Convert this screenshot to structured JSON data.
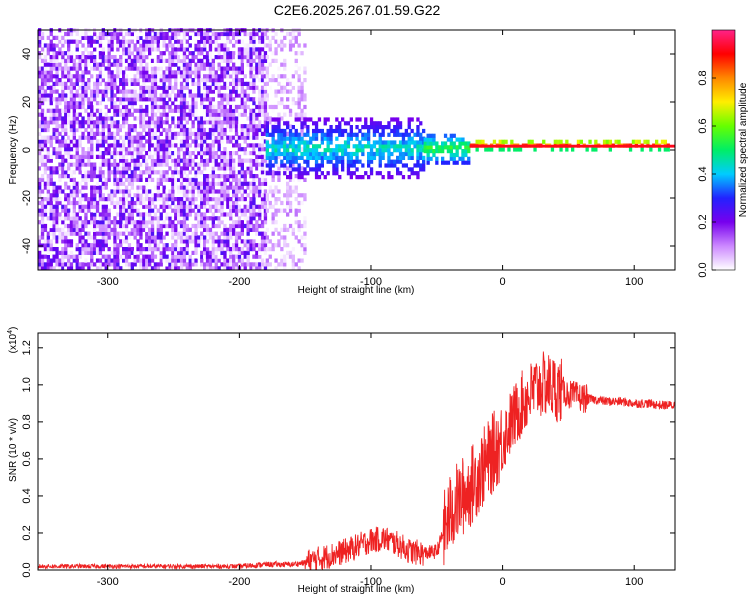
{
  "figure_title": "C2E6.2025.267.01.59.G22",
  "chart_data": [
    {
      "type": "heatmap",
      "title": "C2E6.2025.267.01.59.G22",
      "xlabel": "Height of straight line (km)",
      "ylabel": "Frequency (Hz)",
      "xlim": [
        -353,
        131
      ],
      "ylim": [
        -50,
        50
      ],
      "xticks": [
        -300,
        -200,
        -100,
        0,
        100
      ],
      "xtick_labels": [
        "-300",
        "-200",
        "-100",
        "0",
        "100"
      ],
      "yticks": [
        -40,
        -20,
        0,
        20,
        40
      ],
      "ytick_labels": [
        "-40",
        "-20",
        "0",
        "20",
        "40"
      ],
      "colorbar": {
        "label": "Normalized spectral amplitude",
        "range": [
          0,
          1
        ],
        "ticks": [
          0.0,
          0.2,
          0.4,
          0.6,
          0.8
        ],
        "tick_labels": [
          "0.0",
          "0.2",
          "0.4",
          "0.6",
          "0.8"
        ],
        "colormap": [
          "#ffffff",
          "#cc88ff",
          "#7700ee",
          "#2222ff",
          "#00ccff",
          "#00ee66",
          "#66ff00",
          "#ffee00",
          "#ff8800",
          "#ff0000",
          "#ff2288"
        ]
      },
      "regions": [
        {
          "x": [
            -353,
            -180
          ],
          "freq_spread": 50,
          "amplitude": [
            0.0,
            0.25
          ],
          "description": "broadband noise"
        },
        {
          "x": [
            -180,
            -150
          ],
          "freq_spread": 50,
          "amplitude": [
            0.0,
            0.12
          ],
          "description": "faint noise edge"
        },
        {
          "x": [
            -180,
            -60
          ],
          "freq_center": 0,
          "freq_spread": 12,
          "amplitude": [
            0.2,
            0.5
          ]
        },
        {
          "x": [
            -60,
            -25
          ],
          "freq_center": 0,
          "freq_spread": 6,
          "amplitude": [
            0.3,
            0.6
          ]
        },
        {
          "x": [
            -25,
            131
          ],
          "freq_center": 1.5,
          "freq_spread": 2,
          "amplitude": [
            0.5,
            0.98
          ],
          "description": "carrier line"
        }
      ]
    },
    {
      "type": "line",
      "xlabel": "Height of straight line (km)",
      "ylabel": "SNR (10 * v/v)",
      "y_multiplier": "(x10",
      "y_multiplier_exp": "4",
      "y_multiplier_close": ")",
      "xlim": [
        -353,
        131
      ],
      "ylim": [
        0,
        1.28
      ],
      "xticks": [
        -300,
        -200,
        -100,
        0,
        100
      ],
      "xtick_labels": [
        "-300",
        "-200",
        "-100",
        "0",
        "100"
      ],
      "yticks": [
        0.0,
        0.2,
        0.4,
        0.6,
        0.8,
        1.0,
        1.2
      ],
      "ytick_labels": [
        "0.0",
        "0.2",
        "0.4",
        "0.6",
        "0.8",
        "1.0",
        "1.2"
      ],
      "line_color": "#ee2222",
      "series": [
        {
          "name": "SNR",
          "x": [
            -353,
            -320,
            -280,
            -240,
            -200,
            -180,
            -160,
            -150,
            -140,
            -130,
            -120,
            -110,
            -100,
            -90,
            -80,
            -70,
            -60,
            -50,
            -45,
            -40,
            -35,
            -30,
            -25,
            -20,
            -15,
            -10,
            -5,
            0,
            5,
            10,
            15,
            20,
            25,
            30,
            35,
            40,
            45,
            50,
            55,
            60,
            70,
            80,
            90,
            100,
            110,
            120,
            131
          ],
          "y": [
            0.02,
            0.02,
            0.02,
            0.02,
            0.02,
            0.03,
            0.03,
            0.04,
            0.06,
            0.08,
            0.1,
            0.13,
            0.16,
            0.17,
            0.14,
            0.1,
            0.09,
            0.1,
            0.2,
            0.3,
            0.36,
            0.4,
            0.44,
            0.5,
            0.55,
            0.6,
            0.66,
            0.7,
            0.78,
            0.84,
            0.9,
            0.94,
            0.98,
            1.0,
            1.0,
            0.98,
            0.97,
            0.95,
            0.94,
            0.93,
            0.92,
            0.91,
            0.91,
            0.9,
            0.9,
            0.89,
            0.89
          ]
        }
      ],
      "noise": [
        {
          "x": [
            -353,
            -200
          ],
          "amplitude": 0.012
        },
        {
          "x": [
            -200,
            -150
          ],
          "amplitude": 0.015
        },
        {
          "x": [
            -150,
            -60
          ],
          "amplitude": 0.07
        },
        {
          "x": [
            -60,
            -45
          ],
          "amplitude": 0.04
        },
        {
          "x": [
            -45,
            0
          ],
          "amplitude": 0.22
        },
        {
          "x": [
            0,
            45
          ],
          "amplitude": 0.18
        },
        {
          "x": [
            45,
            65
          ],
          "amplitude": 0.08
        },
        {
          "x": [
            65,
            131
          ],
          "amplitude": 0.025
        }
      ]
    }
  ]
}
